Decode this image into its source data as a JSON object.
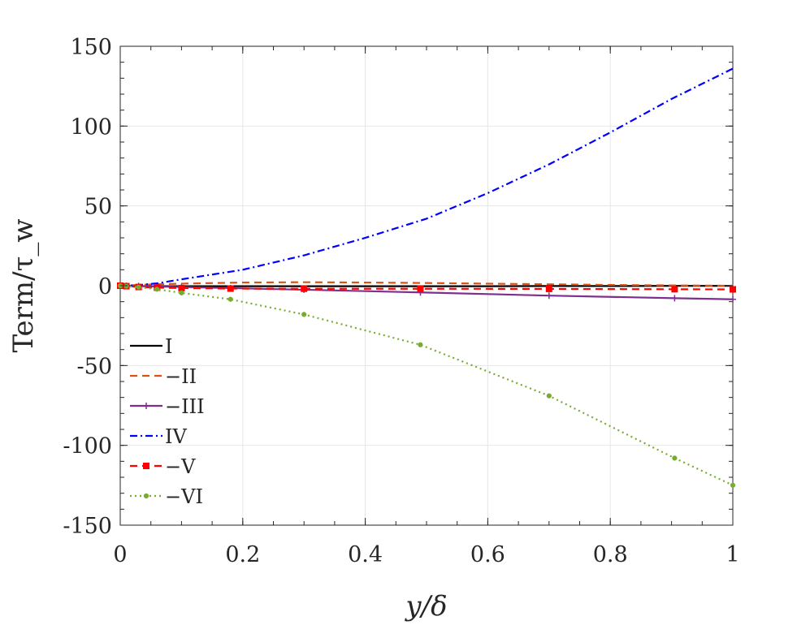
{
  "chart_data": {
    "type": "line",
    "title": "",
    "xlabel": "y/δ",
    "ylabel": "Term/τ_w",
    "xlim": [
      0,
      1
    ],
    "ylim": [
      -150,
      150
    ],
    "xticks": [
      "0",
      "0.2",
      "0.4",
      "0.6",
      "0.8",
      "1"
    ],
    "yticks": [
      "150",
      "100",
      "50",
      "0",
      "-50",
      "-100",
      "-150"
    ],
    "grid": true,
    "legend_position": "lower-left",
    "series": [
      {
        "name": "I",
        "color": "#000000",
        "style": "solid",
        "marker": "none",
        "x": [
          0,
          0.02,
          0.05,
          0.1,
          0.2,
          0.3,
          0.4,
          0.5,
          0.6,
          0.7,
          0.8,
          0.9,
          1.0
        ],
        "y": [
          0,
          -0.2,
          -0.3,
          -0.3,
          -0.3,
          -0.3,
          -0.3,
          -0.3,
          -0.3,
          -0.2,
          -0.2,
          -0.1,
          -0.1
        ]
      },
      {
        "name": "−II",
        "color": "#d95319",
        "style": "dashed",
        "marker": "none",
        "x": [
          0,
          0.02,
          0.05,
          0.1,
          0.2,
          0.3,
          0.4,
          0.5,
          0.6,
          0.7,
          0.8,
          0.9,
          1.0
        ],
        "y": [
          0,
          0.3,
          0.8,
          1.3,
          2.0,
          2.2,
          2.0,
          1.7,
          1.3,
          0.9,
          0.5,
          0.2,
          0.0
        ]
      },
      {
        "name": "−III",
        "color": "#7e2f8e",
        "style": "solid",
        "marker": "plus",
        "x": [
          0,
          0.01,
          0.03,
          0.06,
          0.1,
          0.18,
          0.3,
          0.49,
          0.7,
          0.905,
          1.0
        ],
        "y": [
          0,
          -0.05,
          -0.2,
          -0.5,
          -0.8,
          -1.5,
          -2.5,
          -4.2,
          -6.2,
          -7.8,
          -8.5
        ]
      },
      {
        "name": "IV",
        "color": "#0000ff",
        "style": "dashdot",
        "marker": "none",
        "x": [
          0,
          0.03,
          0.06,
          0.1,
          0.15,
          0.2,
          0.3,
          0.4,
          0.5,
          0.6,
          0.7,
          0.8,
          0.9,
          1.0
        ],
        "y": [
          0,
          0.4,
          1.5,
          4,
          7,
          10,
          19,
          30,
          42,
          58,
          76,
          96,
          117,
          136
        ]
      },
      {
        "name": "−V",
        "color": "#ff0000",
        "style": "dashed",
        "marker": "square",
        "x": [
          0,
          0.01,
          0.03,
          0.06,
          0.1,
          0.18,
          0.3,
          0.49,
          0.7,
          0.905,
          1.0
        ],
        "y": [
          0,
          -0.3,
          -0.8,
          -1.2,
          -1.5,
          -1.8,
          -1.9,
          -1.9,
          -2.0,
          -2.2,
          -2.3
        ]
      },
      {
        "name": "−VI",
        "color": "#77ac30",
        "style": "dotted",
        "marker": "dot",
        "x": [
          0,
          0.01,
          0.03,
          0.06,
          0.1,
          0.18,
          0.3,
          0.49,
          0.7,
          0.905,
          1.0
        ],
        "y": [
          0,
          -0.3,
          -0.9,
          -2.2,
          -4.5,
          -8.5,
          -18,
          -37,
          -69,
          -108,
          -125
        ]
      }
    ]
  }
}
